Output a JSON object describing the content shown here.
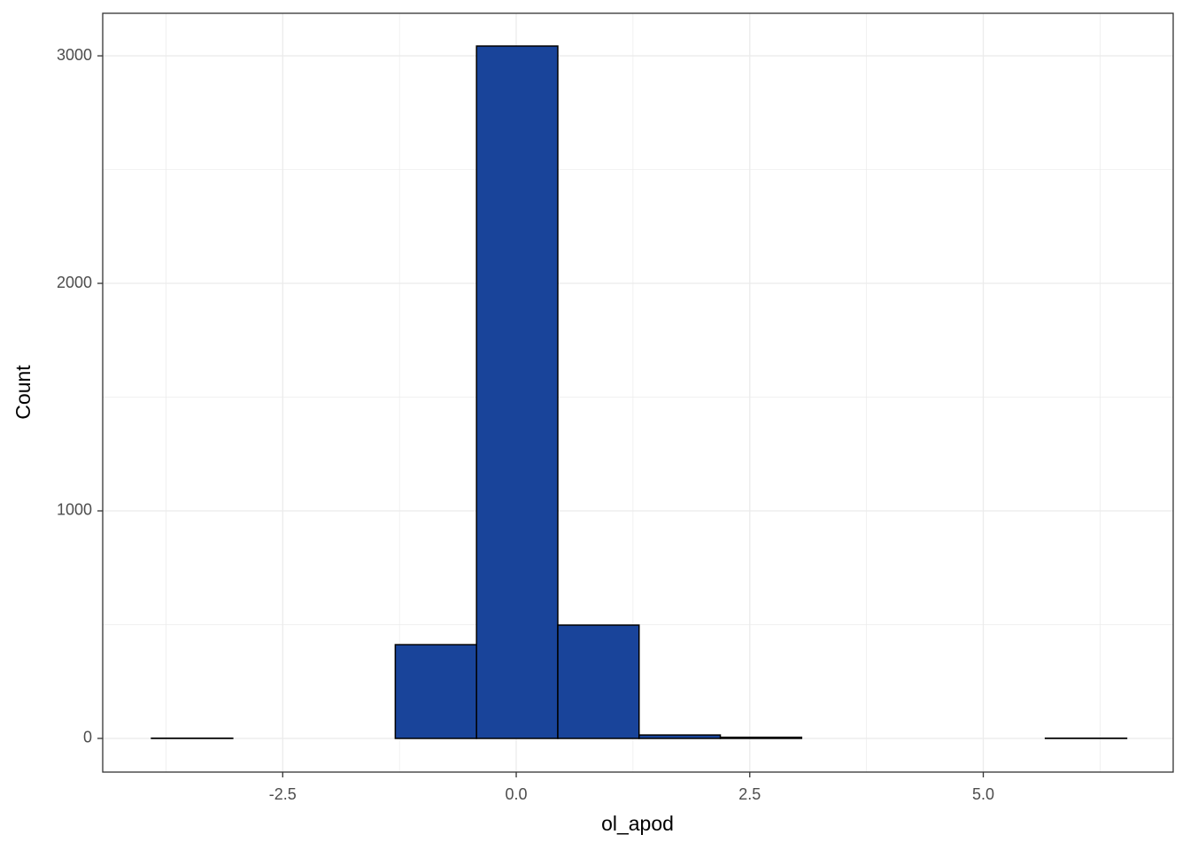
{
  "chart_data": {
    "type": "histogram",
    "x_label": "ol_apod",
    "y_label": "Count",
    "bins": [
      -3.905,
      -3.035,
      -2.165,
      -1.295,
      -0.425,
      0.445,
      1.315,
      2.185,
      3.055,
      3.925,
      4.795,
      5.665,
      6.535
    ],
    "values": [
      1,
      0,
      0,
      412,
      3043,
      498,
      15,
      5,
      0,
      0,
      0,
      1
    ],
    "color": "#19449a",
    "edge_color": "#000000",
    "xlim": [
      -4.427,
      7.033
    ],
    "ylim": [
      -148,
      3187
    ],
    "xticks": [
      -2.5,
      {
        "value": 0,
        "label": "0.0"
      },
      2.5,
      {
        "value": 5,
        "label": "5.0"
      }
    ],
    "yticks": [
      0,
      1000,
      2000,
      3000
    ],
    "x_minor_ticks": [
      -3.75,
      -1.25,
      1.25,
      3.75,
      6.25
    ],
    "y_minor_ticks": [
      500,
      1500,
      2500
    ],
    "grid": true
  }
}
